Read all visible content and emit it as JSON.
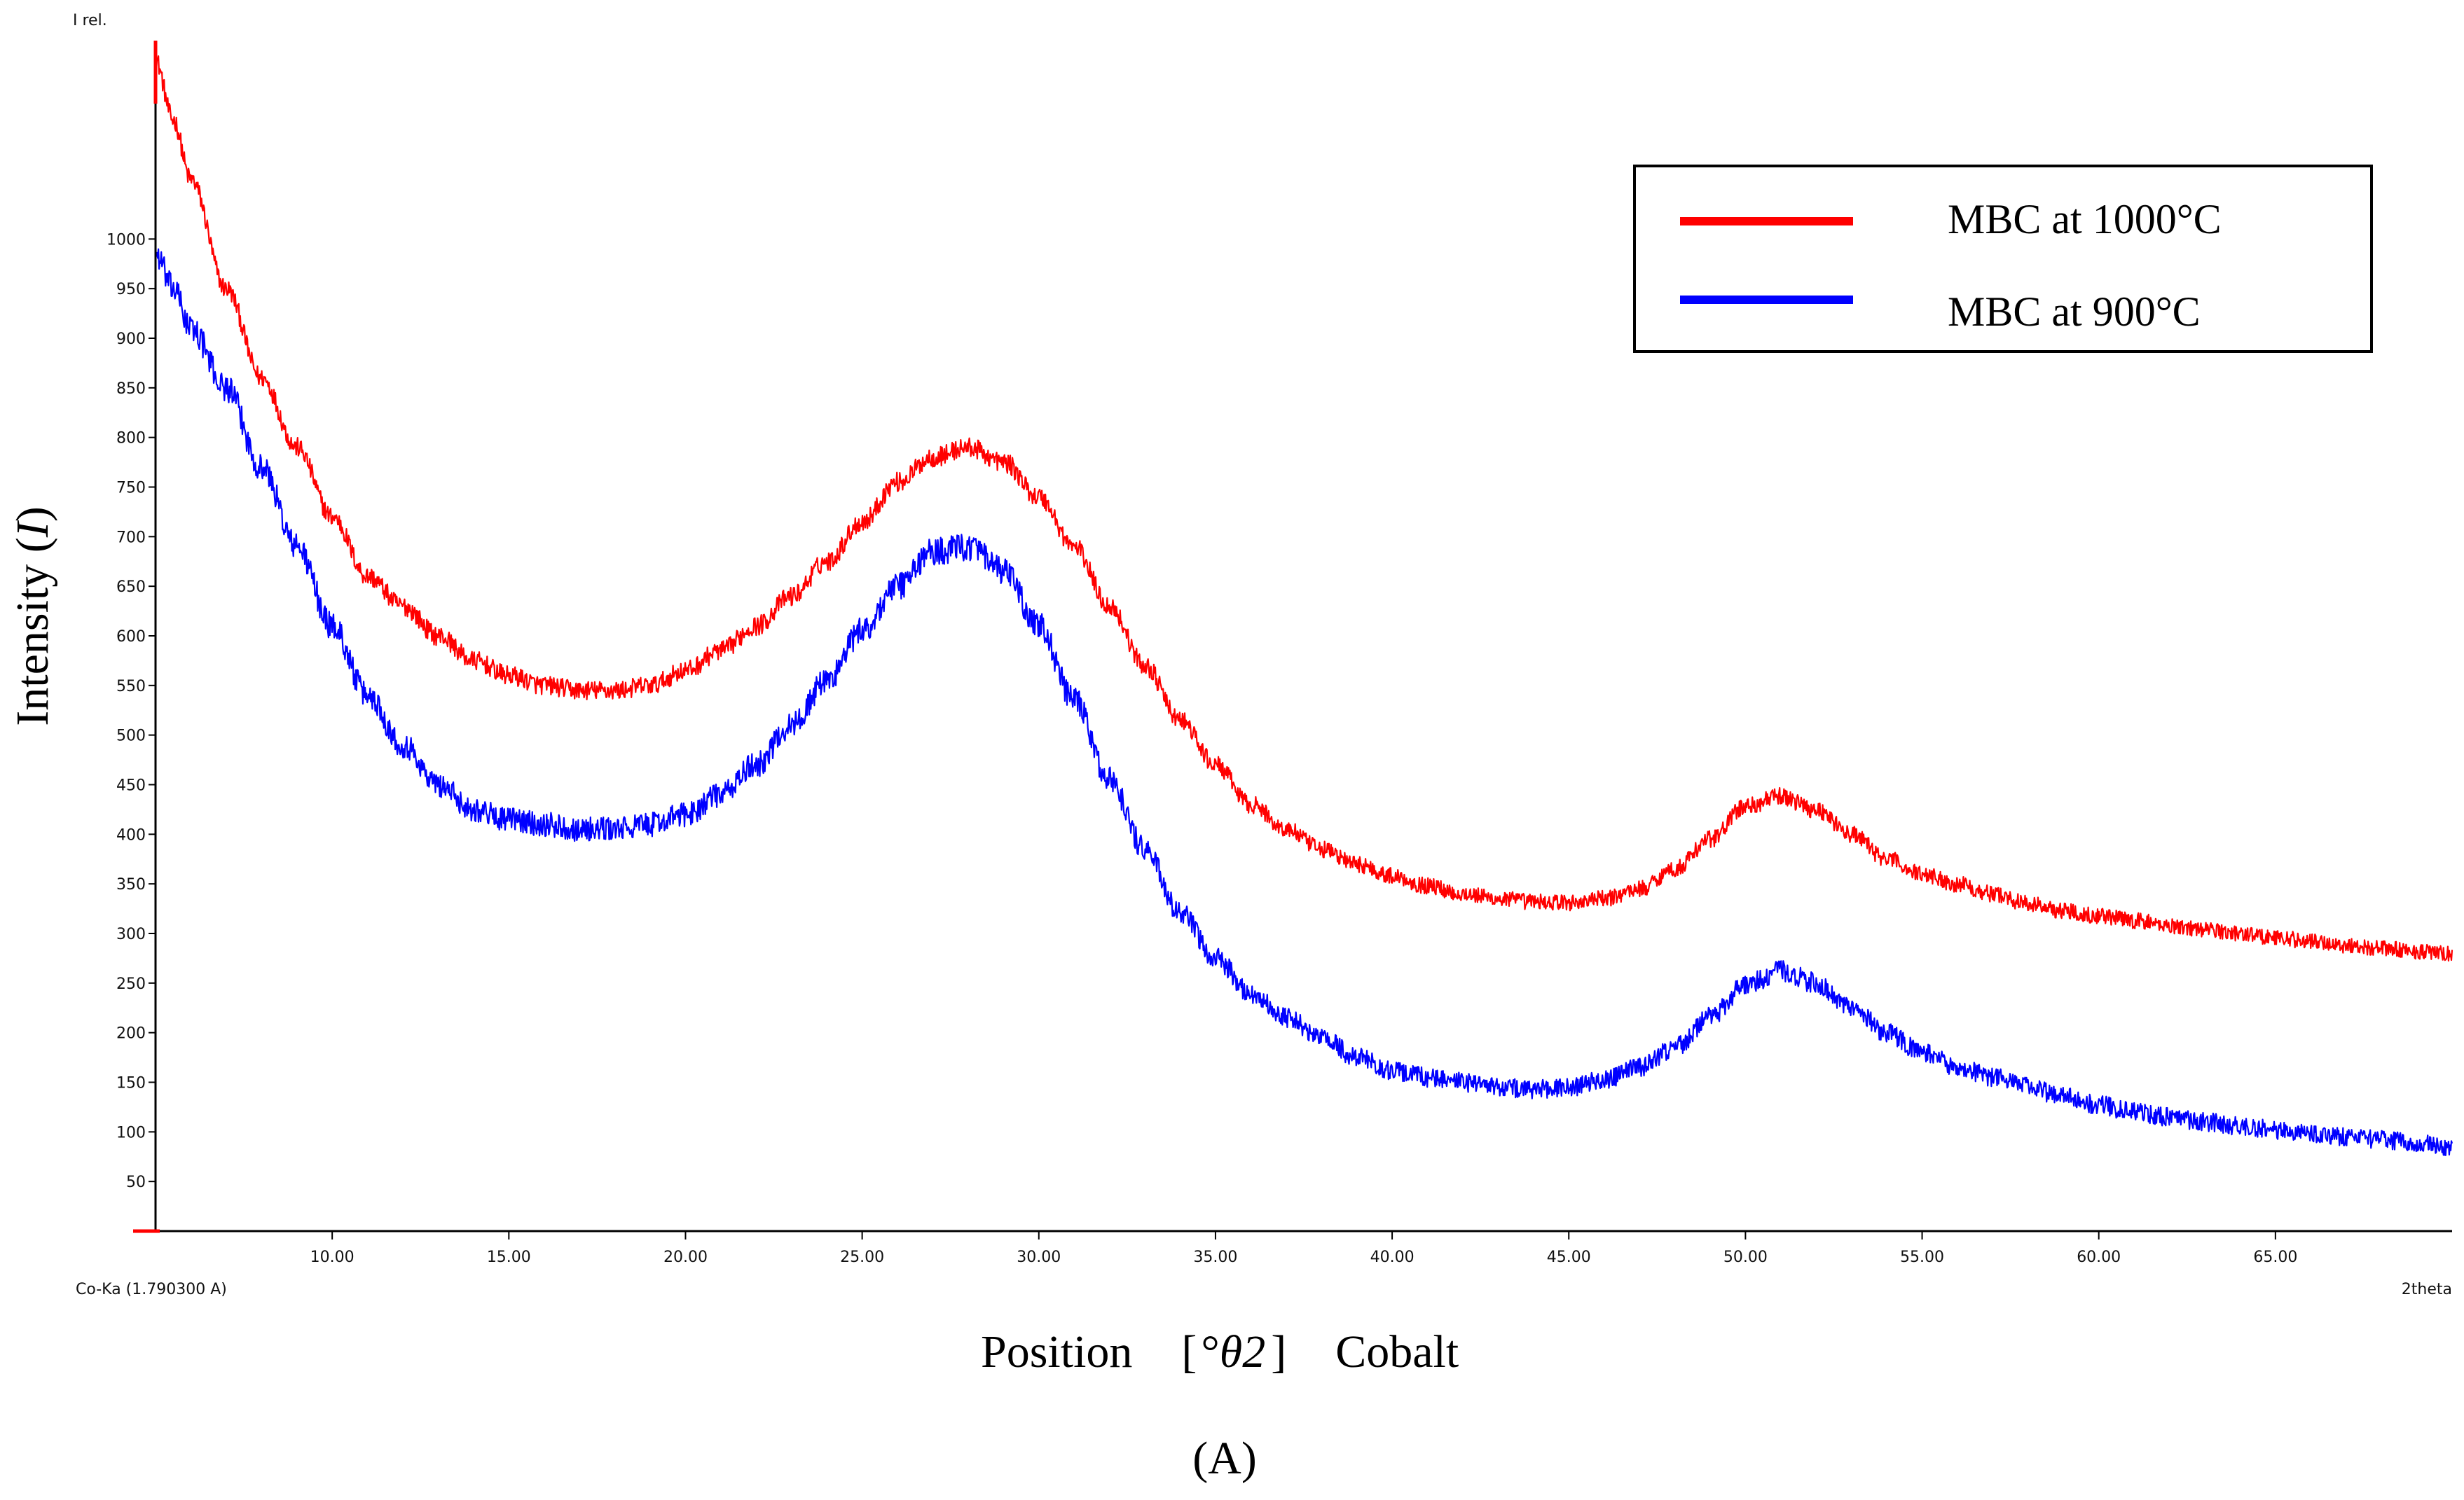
{
  "chart_data": {
    "type": "line",
    "title": "",
    "corner_label": "I rel.",
    "radiation_label": "Co-Ka (1.790300 A)",
    "x_axis_end_label": "2theta",
    "xlabel": {
      "prefix": "Position",
      "open_bracket": "[",
      "unit_symbol": "°",
      "unit_italic": "θ2",
      "close_bracket": "]",
      "suffix": "Cobalt"
    },
    "ylabel": {
      "text": "Intensity (",
      "italic": "I",
      "close": ")"
    },
    "panel_label": "(A)",
    "xlim": [
      5.0,
      70.0
    ],
    "ylim": [
      0,
      1200
    ],
    "x_ticks": [
      10,
      15,
      20,
      25,
      30,
      35,
      40,
      45,
      50,
      55,
      60,
      65
    ],
    "x_tick_labels": [
      "10.00",
      "15.00",
      "20.00",
      "25.00",
      "30.00",
      "35.00",
      "40.00",
      "45.00",
      "50.00",
      "55.00",
      "60.00",
      "65.00"
    ],
    "y_ticks": [
      50,
      100,
      150,
      200,
      250,
      300,
      350,
      400,
      450,
      500,
      550,
      600,
      650,
      700,
      750,
      800,
      850,
      900,
      950,
      1000
    ],
    "y_tick_labels": [
      "50",
      "100",
      "150",
      "200",
      "250",
      "300",
      "350",
      "400",
      "450",
      "500",
      "550",
      "600",
      "650",
      "700",
      "750",
      "800",
      "850",
      "900",
      "950",
      "1000"
    ],
    "legend_position": "top-right",
    "x": [
      5.0,
      5.5,
      6.0,
      7.0,
      8.0,
      9.0,
      10.0,
      11.0,
      12.0,
      13.0,
      14.0,
      15.0,
      16.0,
      17.0,
      18.0,
      19.0,
      20.0,
      21.0,
      22.0,
      23.0,
      24.0,
      25.0,
      26.0,
      27.0,
      28.0,
      29.0,
      30.0,
      31.0,
      32.0,
      33.0,
      34.0,
      35.0,
      36.0,
      37.0,
      38.0,
      39.0,
      40.0,
      41.0,
      42.0,
      43.0,
      44.0,
      45.0,
      46.0,
      47.0,
      48.0,
      49.0,
      50.0,
      51.0,
      52.0,
      53.0,
      54.0,
      55.0,
      56.0,
      57.0,
      58.0,
      59.0,
      60.0,
      61.0,
      62.0,
      63.0,
      64.0,
      65.0,
      66.0,
      67.0,
      68.0,
      69.0,
      70.0
    ],
    "series": [
      {
        "name": "MBC at 1000°C",
        "color": "#ff0000",
        "noise": 10,
        "values": [
          1180,
          1120,
          1060,
          950,
          860,
          790,
          720,
          660,
          630,
          600,
          575,
          560,
          550,
          545,
          545,
          550,
          565,
          585,
          610,
          640,
          675,
          715,
          755,
          780,
          790,
          775,
          740,
          690,
          630,
          570,
          515,
          470,
          430,
          405,
          385,
          370,
          358,
          348,
          340,
          335,
          332,
          331,
          335,
          345,
          365,
          395,
          428,
          438,
          425,
          400,
          375,
          360,
          350,
          340,
          330,
          323,
          318,
          313,
          308,
          304,
          300,
          296,
          292,
          288,
          285,
          282,
          279
        ]
      },
      {
        "name": "MBC at 900°C",
        "color": "#0000ff",
        "noise": 14,
        "values": [
          985,
          950,
          910,
          850,
          770,
          690,
          610,
          540,
          490,
          450,
          425,
          415,
          410,
          405,
          405,
          410,
          420,
          440,
          470,
          510,
          555,
          605,
          650,
          685,
          690,
          665,
          610,
          535,
          455,
          385,
          320,
          275,
          240,
          215,
          195,
          175,
          162,
          155,
          150,
          145,
          143,
          145,
          152,
          165,
          185,
          215,
          248,
          262,
          250,
          225,
          200,
          180,
          165,
          155,
          145,
          135,
          127,
          120,
          115,
          110,
          106,
          102,
          98,
          95,
          92,
          89,
          85
        ]
      }
    ]
  },
  "legend": {
    "items": [
      {
        "label": "MBC at 1000°C",
        "color": "#ff0000"
      },
      {
        "label": "MBC at 900°C",
        "color": "#0000ff"
      }
    ]
  }
}
